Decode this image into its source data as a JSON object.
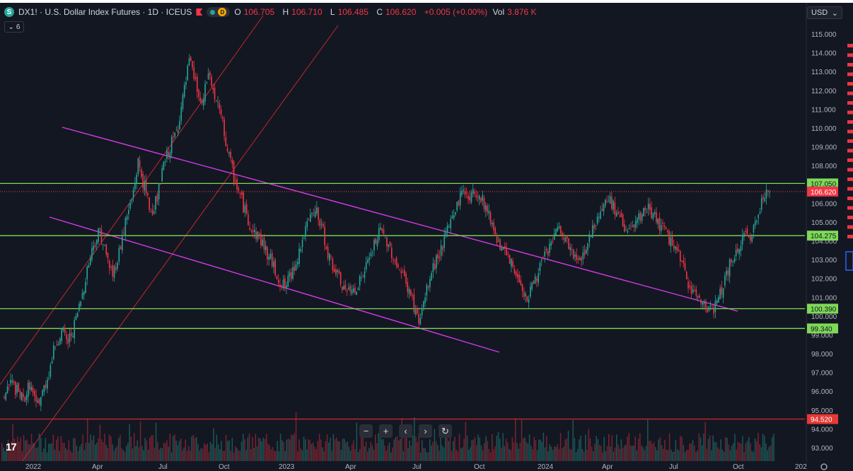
{
  "header": {
    "symbol_badge": "S",
    "title": "DX1! · U.S. Dollar Index Futures · 1D · ICEUS",
    "status_letter": "D",
    "ohlc": {
      "o_label": "O",
      "o": "106.705",
      "h_label": "H",
      "h": "106.710",
      "l_label": "L",
      "l": "106.485",
      "c_label": "C",
      "c": "106.620",
      "change": "+0.005 (+0.00%)",
      "vol_label": "Vol",
      "vol": "3.876 K"
    },
    "collapse_count": "6"
  },
  "currency": {
    "value": "USD"
  },
  "nav_buttons": [
    {
      "name": "zoom-out-button",
      "glyph": "−"
    },
    {
      "name": "zoom-in-button",
      "glyph": "+"
    },
    {
      "name": "scroll-left-button",
      "glyph": "‹"
    },
    {
      "name": "scroll-right-button",
      "glyph": "›"
    },
    {
      "name": "reset-button",
      "glyph": "↻"
    }
  ],
  "logo_text": "17",
  "colors": {
    "background": "#131722",
    "up": "#26a69a",
    "down": "#f23645",
    "support": "#7ed957",
    "channel_purple": "#d33be6",
    "channel_red": "#c2282c"
  },
  "chart_data": {
    "type": "candlestick",
    "y_range": [
      92.6,
      115.8
    ],
    "y_ticks": [
      "115.000",
      "114.000",
      "113.000",
      "112.000",
      "111.000",
      "110.000",
      "109.000",
      "108.000",
      "107.000",
      "106.000",
      "105.000",
      "104.000",
      "103.000",
      "102.000",
      "101.000",
      "100.000",
      "99.000",
      "98.000",
      "97.000",
      "96.000",
      "95.000",
      "94.000",
      "93.000"
    ],
    "x_ticks": [
      "2022",
      "Apr",
      "Jul",
      "Oct",
      "2023",
      "Apr",
      "Jul",
      "Oct",
      "2024",
      "Apr",
      "Jul",
      "Oct",
      "202"
    ],
    "horizontal_levels": [
      {
        "value": 107.05,
        "label": "107.050",
        "color": "#7ed957"
      },
      {
        "value": 104.275,
        "label": "104.275",
        "color": "#7ed957"
      },
      {
        "value": 100.39,
        "label": "100.390",
        "color": "#7ed957"
      },
      {
        "value": 99.34,
        "label": "99.340",
        "color": "#7ed957"
      },
      {
        "value": 94.52,
        "label": "94.520",
        "color": "#c2282c"
      }
    ],
    "last_price": {
      "value": 106.62,
      "label": "106.620"
    },
    "price_path": [
      [
        0,
        95.8
      ],
      [
        3,
        96.5
      ],
      [
        6,
        96.0
      ],
      [
        9,
        95.5
      ],
      [
        12,
        96.4
      ],
      [
        15,
        95.2
      ],
      [
        18,
        95.9
      ],
      [
        21,
        97.0
      ],
      [
        24,
        98.5
      ],
      [
        27,
        99.2
      ],
      [
        30,
        98.6
      ],
      [
        33,
        99.5
      ],
      [
        36,
        100.8
      ],
      [
        39,
        102.5
      ],
      [
        42,
        103.8
      ],
      [
        45,
        104.6
      ],
      [
        48,
        103.2
      ],
      [
        51,
        102.2
      ],
      [
        54,
        103.4
      ],
      [
        57,
        105.0
      ],
      [
        60,
        106.2
      ],
      [
        63,
        108.2
      ],
      [
        66,
        106.8
      ],
      [
        69,
        105.5
      ],
      [
        72,
        106.3
      ],
      [
        75,
        108.0
      ],
      [
        78,
        109.0
      ],
      [
        81,
        109.8
      ],
      [
        84,
        111.5
      ],
      [
        87,
        113.5
      ],
      [
        90,
        112.4
      ],
      [
        93,
        111.0
      ],
      [
        96,
        113.0
      ],
      [
        99,
        111.6
      ],
      [
        102,
        110.6
      ],
      [
        105,
        108.8
      ],
      [
        108,
        107.4
      ],
      [
        111,
        106.4
      ],
      [
        114,
        105.3
      ],
      [
        117,
        104.5
      ],
      [
        120,
        104.2
      ],
      [
        123,
        103.5
      ],
      [
        126,
        102.8
      ],
      [
        129,
        102.0
      ],
      [
        132,
        101.5
      ],
      [
        135,
        102.2
      ],
      [
        138,
        103.2
      ],
      [
        141,
        104.3
      ],
      [
        144,
        105.2
      ],
      [
        147,
        105.5
      ],
      [
        150,
        104.4
      ],
      [
        153,
        103.1
      ],
      [
        156,
        102.3
      ],
      [
        159,
        101.6
      ],
      [
        162,
        101.2
      ],
      [
        165,
        101.5
      ],
      [
        168,
        102.0
      ],
      [
        171,
        102.8
      ],
      [
        174,
        103.8
      ],
      [
        177,
        104.5
      ],
      [
        180,
        104.0
      ],
      [
        183,
        103.2
      ],
      [
        186,
        102.4
      ],
      [
        189,
        101.8
      ],
      [
        192,
        100.8
      ],
      [
        195,
        99.6
      ],
      [
        198,
        101.0
      ],
      [
        201,
        102.3
      ],
      [
        204,
        103.2
      ],
      [
        207,
        104.0
      ],
      [
        210,
        105.0
      ],
      [
        213,
        106.0
      ],
      [
        216,
        106.7
      ],
      [
        219,
        106.3
      ],
      [
        222,
        106.6
      ],
      [
        225,
        106.2
      ],
      [
        228,
        105.4
      ],
      [
        231,
        104.4
      ],
      [
        234,
        103.6
      ],
      [
        237,
        103.0
      ],
      [
        240,
        102.4
      ],
      [
        243,
        101.8
      ],
      [
        246,
        100.9
      ],
      [
        249,
        101.8
      ],
      [
        252,
        102.6
      ],
      [
        255,
        103.3
      ],
      [
        258,
        104.1
      ],
      [
        261,
        104.6
      ],
      [
        264,
        104.0
      ],
      [
        267,
        103.4
      ],
      [
        270,
        102.8
      ],
      [
        273,
        103.5
      ],
      [
        276,
        104.4
      ],
      [
        279,
        105.3
      ],
      [
        282,
        106.0
      ],
      [
        285,
        106.2
      ],
      [
        288,
        105.4
      ],
      [
        291,
        104.9
      ],
      [
        294,
        104.5
      ],
      [
        297,
        104.8
      ],
      [
        300,
        105.4
      ],
      [
        303,
        105.7
      ],
      [
        306,
        105.3
      ],
      [
        309,
        104.7
      ],
      [
        312,
        104.2
      ],
      [
        315,
        103.8
      ],
      [
        318,
        102.9
      ],
      [
        321,
        102.0
      ],
      [
        324,
        101.3
      ],
      [
        327,
        100.9
      ],
      [
        330,
        100.6
      ],
      [
        333,
        100.3
      ],
      [
        336,
        100.9
      ],
      [
        339,
        102.0
      ],
      [
        342,
        102.9
      ],
      [
        345,
        103.5
      ],
      [
        348,
        104.2
      ],
      [
        351,
        104.3
      ],
      [
        354,
        105.2
      ],
      [
        357,
        106.5
      ],
      [
        360,
        106.6
      ]
    ]
  }
}
